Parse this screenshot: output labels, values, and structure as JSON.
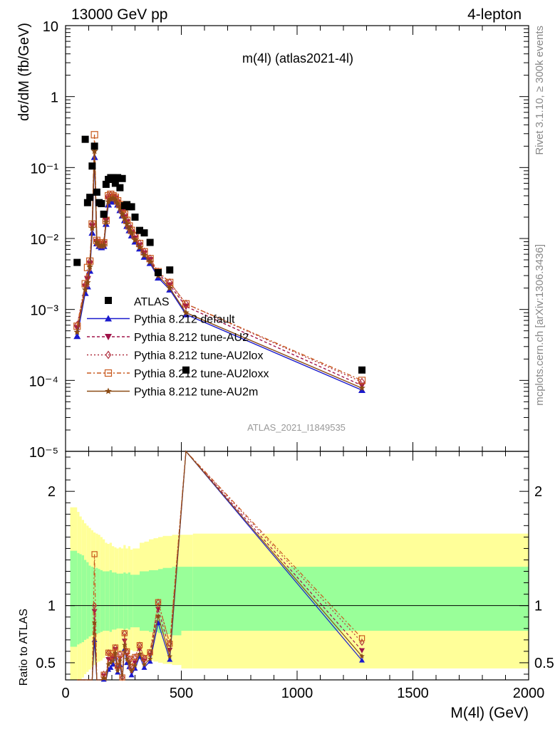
{
  "header": {
    "left": "13000 GeV pp",
    "right": "4-lepton"
  },
  "side_labels": {
    "rivet": "Rivet 3.1.10, ≥ 300k events",
    "mcplots": "mcplots.cern.ch [arXiv:1306.3436]"
  },
  "chart_data": {
    "type": "line",
    "title": "m(4l) (atlas2021-4l)",
    "analysis_id": "ATLAS_2021_I1849535",
    "xlabel": "M(4l) (GeV)",
    "ylabel": "dσ/dM (fb/GeV)",
    "ratio_ylabel": "Ratio to ATLAS",
    "xlim": [
      0,
      2000
    ],
    "ylim": [
      1e-05,
      10
    ],
    "yscale": "log",
    "ratio_ylim": [
      0.35,
      2.35
    ],
    "x_ticks": [
      "0",
      "500",
      "1000",
      "1500",
      "2000"
    ],
    "y_ticks": [
      "10⁻⁵",
      "10⁻⁴",
      "10⁻³",
      "10⁻²",
      "10⁻¹",
      "1",
      "10"
    ],
    "ratio_ticks": [
      "0.5",
      "1",
      "2"
    ],
    "legend_position": "center-left",
    "data": {
      "name": "ATLAS",
      "x": [
        50,
        85,
        95,
        105,
        115,
        125,
        135,
        145,
        155,
        165,
        175,
        185,
        195,
        205,
        215,
        225,
        235,
        245,
        255,
        265,
        275,
        285,
        300,
        320,
        340,
        365,
        400,
        450,
        520,
        1280
      ],
      "y": [
        0.0046,
        0.25,
        0.032,
        0.038,
        0.105,
        0.2,
        0.045,
        0.032,
        0.031,
        0.022,
        0.058,
        0.068,
        0.072,
        0.072,
        0.06,
        0.072,
        0.052,
        0.07,
        0.029,
        0.03,
        0.028,
        0.028,
        0.02,
        0.013,
        0.012,
        0.0088,
        0.0033,
        0.0036,
        0.00014,
        0.00014
      ]
    },
    "band_edges": [
      20,
      50,
      60,
      70,
      80,
      90,
      100,
      110,
      120,
      130,
      140,
      150,
      160,
      170,
      180,
      190,
      200,
      210,
      220,
      230,
      240,
      250,
      260,
      270,
      280,
      290,
      300,
      320,
      340,
      360,
      380,
      400,
      420,
      440,
      460,
      480,
      500,
      550,
      2000
    ],
    "band_stat_hi": [
      1.48,
      1.46,
      1.45,
      1.44,
      1.4,
      1.38,
      1.35,
      1.34,
      1.33,
      1.33,
      1.32,
      1.31,
      1.3,
      1.3,
      1.3,
      1.31,
      1.29,
      1.29,
      1.28,
      1.28,
      1.28,
      1.29,
      1.28,
      1.29,
      1.27,
      1.27,
      1.27,
      1.3,
      1.3,
      1.31,
      1.31,
      1.32,
      1.33,
      1.33,
      1.34,
      1.34,
      1.34,
      1.34
    ],
    "band_stat_lo": [
      0.64,
      0.66,
      0.67,
      0.68,
      0.7,
      0.71,
      0.73,
      0.74,
      0.75,
      0.75,
      0.76,
      0.77,
      0.78,
      0.78,
      0.78,
      0.77,
      0.79,
      0.79,
      0.8,
      0.8,
      0.8,
      0.79,
      0.8,
      0.79,
      0.81,
      0.81,
      0.81,
      0.78,
      0.78,
      0.77,
      0.77,
      0.76,
      0.75,
      0.75,
      0.74,
      0.74,
      0.78,
      0.78
    ],
    "band_total_hi": [
      1.86,
      1.82,
      1.78,
      1.75,
      1.72,
      1.7,
      1.68,
      1.66,
      1.64,
      1.63,
      1.62,
      1.6,
      1.58,
      1.55,
      1.54,
      1.55,
      1.52,
      1.51,
      1.5,
      1.51,
      1.5,
      1.53,
      1.5,
      1.52,
      1.49,
      1.5,
      1.5,
      1.55,
      1.56,
      1.58,
      1.59,
      1.6,
      1.61,
      1.61,
      1.62,
      1.62,
      1.62,
      1.63
    ],
    "band_total_lo": [
      0.3,
      0.33,
      0.35,
      0.37,
      0.4,
      0.42,
      0.44,
      0.46,
      0.48,
      0.5,
      0.51,
      0.52,
      0.54,
      0.56,
      0.57,
      0.56,
      0.58,
      0.59,
      0.6,
      0.59,
      0.6,
      0.57,
      0.6,
      0.58,
      0.61,
      0.6,
      0.6,
      0.55,
      0.54,
      0.52,
      0.51,
      0.5,
      0.49,
      0.49,
      0.48,
      0.48,
      0.45,
      0.45
    ],
    "series": [
      {
        "name": "Pythia 8.212 default",
        "color": "#1a1acd",
        "dash": "",
        "marker": "triangle-up",
        "x": [
          50,
          85,
          95,
          105,
          115,
          125,
          135,
          145,
          155,
          165,
          175,
          185,
          195,
          205,
          215,
          225,
          235,
          245,
          255,
          265,
          275,
          285,
          300,
          320,
          340,
          365,
          400,
          450,
          520,
          1280
        ],
        "y": [
          0.00042,
          0.0017,
          0.0021,
          0.0035,
          0.012,
          0.14,
          0.0085,
          0.0078,
          0.0075,
          0.0078,
          0.016,
          0.03,
          0.033,
          0.035,
          0.033,
          0.03,
          0.025,
          0.021,
          0.018,
          0.015,
          0.013,
          0.011,
          0.009,
          0.0072,
          0.0055,
          0.0045,
          0.0028,
          0.0019,
          0.00085,
          7.3e-05
        ]
      },
      {
        "name": "Pythia 8.212 tune-AU2",
        "color": "#a0144a",
        "dash": "4,3",
        "marker": "triangle-down",
        "x": [
          50,
          85,
          95,
          105,
          115,
          125,
          135,
          145,
          155,
          165,
          175,
          185,
          195,
          205,
          215,
          225,
          235,
          245,
          255,
          265,
          275,
          285,
          300,
          320,
          340,
          365,
          400,
          450,
          520,
          1280
        ],
        "y": [
          0.00055,
          0.0021,
          0.0027,
          0.0044,
          0.015,
          0.19,
          0.009,
          0.0085,
          0.008,
          0.0085,
          0.018,
          0.036,
          0.038,
          0.039,
          0.037,
          0.032,
          0.028,
          0.024,
          0.02,
          0.017,
          0.014,
          0.012,
          0.01,
          0.008,
          0.0062,
          0.005,
          0.0032,
          0.0022,
          0.0011,
          8.5e-05
        ]
      },
      {
        "name": "Pythia 8.212 tune-AU2lox",
        "color": "#b03040",
        "dash": "2,3",
        "marker": "diamond",
        "x": [
          50,
          85,
          95,
          105,
          115,
          125,
          135,
          145,
          155,
          165,
          175,
          185,
          195,
          205,
          215,
          225,
          235,
          245,
          255,
          265,
          275,
          285,
          300,
          320,
          340,
          365,
          400,
          450,
          520,
          1280
        ],
        "y": [
          0.0006,
          0.0022,
          0.0028,
          0.0047,
          0.016,
          0.2,
          0.0092,
          0.0087,
          0.0082,
          0.0088,
          0.019,
          0.04,
          0.041,
          0.04,
          0.038,
          0.034,
          0.03,
          0.026,
          0.022,
          0.018,
          0.015,
          0.013,
          0.011,
          0.0085,
          0.0065,
          0.0052,
          0.0034,
          0.0024,
          0.0012,
          9.5e-05
        ]
      },
      {
        "name": "Pythia 8.212 tune-AU2loxx",
        "color": "#c85a1e",
        "dash": "6,3,2,3",
        "marker": "square-open",
        "x": [
          50,
          85,
          95,
          105,
          115,
          125,
          135,
          145,
          155,
          165,
          175,
          185,
          195,
          205,
          215,
          225,
          235,
          245,
          255,
          265,
          275,
          285,
          300,
          320,
          340,
          365,
          400,
          450,
          520,
          1280
        ],
        "y": [
          0.00058,
          0.0023,
          0.0039,
          0.0048,
          0.016,
          0.29,
          0.0094,
          0.0087,
          0.0082,
          0.0087,
          0.018,
          0.04,
          0.042,
          0.04,
          0.038,
          0.034,
          0.03,
          0.026,
          0.022,
          0.018,
          0.015,
          0.013,
          0.011,
          0.0085,
          0.0065,
          0.0052,
          0.0034,
          0.0024,
          0.0012,
          0.0001
        ]
      },
      {
        "name": "Pythia 8.212 tune-AU2m",
        "color": "#8b4a14",
        "dash": "",
        "marker": "star",
        "x": [
          50,
          85,
          95,
          105,
          115,
          125,
          135,
          145,
          155,
          165,
          175,
          185,
          195,
          205,
          215,
          225,
          235,
          245,
          255,
          265,
          275,
          285,
          300,
          320,
          340,
          365,
          400,
          450,
          520,
          1280
        ],
        "y": [
          0.00048,
          0.0019,
          0.0024,
          0.004,
          0.014,
          0.17,
          0.0088,
          0.008,
          0.0078,
          0.008,
          0.017,
          0.033,
          0.036,
          0.037,
          0.035,
          0.031,
          0.027,
          0.022,
          0.019,
          0.016,
          0.014,
          0.012,
          0.0095,
          0.0075,
          0.0058,
          0.0047,
          0.003,
          0.002,
          0.0009,
          7.8e-05
        ]
      }
    ]
  }
}
